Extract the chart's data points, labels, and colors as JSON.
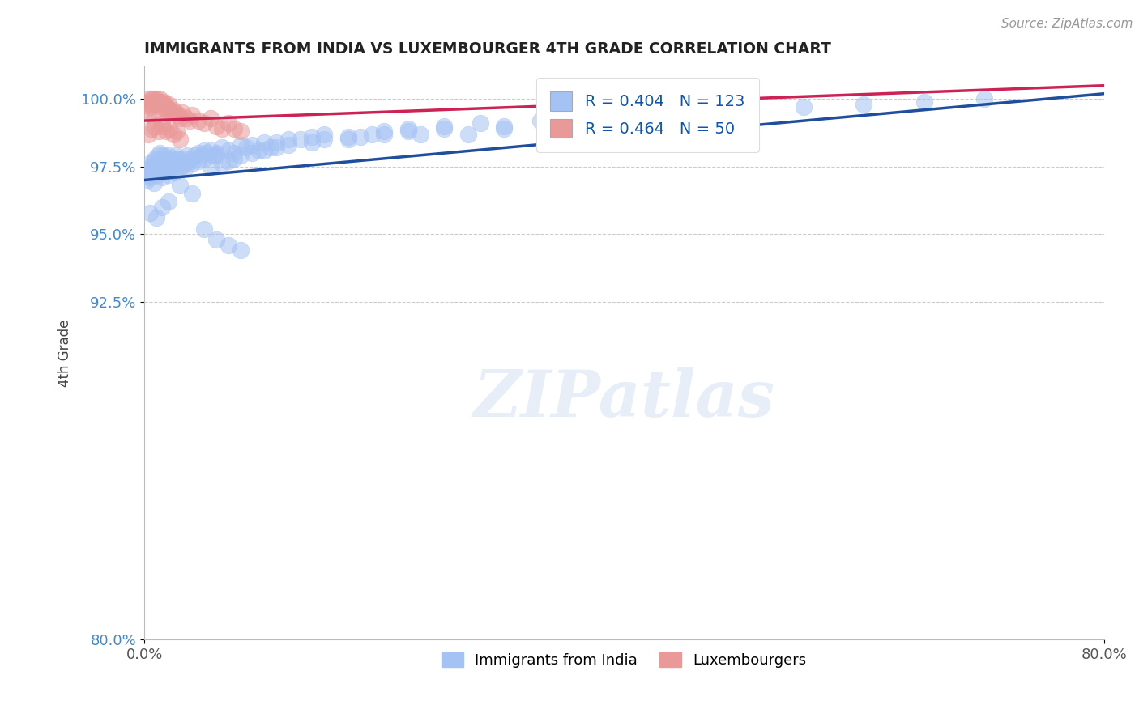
{
  "title": "IMMIGRANTS FROM INDIA VS LUXEMBOURGER 4TH GRADE CORRELATION CHART",
  "source": "Source: ZipAtlas.com",
  "ylabel": "4th Grade",
  "x_min": 0.0,
  "x_max": 80.0,
  "y_min": 80.0,
  "y_max": 101.2,
  "yticks": [
    80.0,
    92.5,
    95.0,
    97.5,
    100.0
  ],
  "xticks": [
    0.0,
    80.0
  ],
  "legend_label1": "Immigrants from India",
  "legend_label2": "Luxembourgers",
  "blue_color": "#a4c2f4",
  "pink_color": "#ea9999",
  "blue_line_color": "#1f4e9c",
  "pink_line_color": "#cc2255",
  "watermark_text": "ZIPatlas",
  "background_color": "#ffffff",
  "grid_color": "#cccccc",
  "blue_x": [
    0.3,
    0.4,
    0.5,
    0.6,
    0.7,
    0.8,
    0.9,
    1.0,
    1.1,
    1.2,
    1.3,
    1.4,
    1.5,
    1.6,
    1.7,
    1.8,
    1.9,
    2.0,
    2.1,
    2.2,
    2.3,
    2.4,
    2.5,
    2.6,
    2.7,
    2.8,
    2.9,
    3.0,
    3.2,
    3.4,
    3.6,
    3.8,
    4.0,
    4.2,
    4.5,
    4.8,
    5.0,
    5.2,
    5.5,
    5.8,
    6.0,
    6.5,
    7.0,
    7.5,
    8.0,
    8.5,
    9.0,
    9.5,
    10.0,
    10.5,
    11.0,
    12.0,
    13.0,
    14.0,
    15.0,
    17.0,
    18.0,
    19.0,
    20.0,
    22.0,
    23.0,
    25.0,
    28.0,
    30.0,
    33.0,
    35.0,
    38.0,
    40.0,
    43.0,
    45.0,
    48.0,
    50.0,
    55.0,
    60.0,
    65.0,
    70.0,
    0.2,
    0.5,
    0.8,
    1.0,
    1.3,
    1.5,
    1.8,
    2.0,
    2.3,
    2.5,
    2.8,
    3.0,
    3.5,
    4.0,
    4.5,
    5.0,
    5.5,
    6.0,
    6.5,
    7.0,
    7.5,
    8.0,
    9.0,
    10.0,
    11.0,
    12.0,
    14.0,
    15.0,
    17.0,
    20.0,
    22.0,
    25.0,
    27.0,
    30.0,
    5.0,
    6.0,
    7.0,
    8.0,
    3.0,
    4.0,
    2.0,
    1.5,
    0.5,
    1.0
  ],
  "blue_y": [
    97.2,
    97.4,
    97.6,
    97.5,
    97.3,
    97.7,
    97.8,
    97.5,
    97.6,
    97.9,
    98.0,
    97.8,
    97.7,
    97.9,
    97.6,
    97.8,
    97.5,
    97.9,
    97.7,
    97.6,
    97.8,
    97.5,
    97.7,
    97.9,
    97.6,
    97.8,
    97.7,
    97.5,
    97.8,
    97.6,
    97.9,
    97.7,
    97.8,
    97.9,
    98.0,
    97.9,
    98.1,
    98.0,
    98.1,
    97.9,
    98.0,
    98.2,
    98.1,
    98.0,
    98.3,
    98.2,
    98.3,
    98.1,
    98.4,
    98.2,
    98.4,
    98.5,
    98.5,
    98.6,
    98.7,
    98.5,
    98.6,
    98.7,
    98.8,
    98.9,
    98.7,
    99.0,
    99.1,
    99.0,
    99.2,
    99.1,
    99.3,
    99.2,
    99.3,
    99.4,
    99.5,
    99.5,
    99.7,
    99.8,
    99.9,
    100.0,
    97.0,
    97.1,
    96.9,
    97.2,
    97.3,
    97.1,
    97.4,
    97.2,
    97.5,
    97.3,
    97.6,
    97.4,
    97.5,
    97.6,
    97.7,
    97.8,
    97.5,
    97.9,
    97.6,
    97.7,
    97.8,
    97.9,
    98.0,
    98.1,
    98.2,
    98.3,
    98.4,
    98.5,
    98.6,
    98.7,
    98.8,
    98.9,
    98.7,
    98.9,
    95.2,
    94.8,
    94.6,
    94.4,
    96.8,
    96.5,
    96.2,
    96.0,
    95.8,
    95.6
  ],
  "pink_x": [
    0.2,
    0.3,
    0.4,
    0.5,
    0.6,
    0.7,
    0.8,
    0.9,
    1.0,
    1.1,
    1.2,
    1.3,
    1.4,
    1.5,
    1.6,
    1.7,
    1.8,
    1.9,
    2.0,
    2.1,
    2.2,
    2.4,
    2.6,
    2.8,
    3.0,
    3.2,
    3.5,
    3.8,
    4.0,
    4.5,
    5.0,
    5.5,
    6.0,
    6.5,
    7.0,
    7.5,
    8.0,
    0.3,
    0.6,
    0.9,
    1.2,
    1.5,
    1.8,
    2.1,
    2.4,
    2.7,
    3.0,
    0.4,
    0.8,
    1.5
  ],
  "pink_y": [
    99.8,
    99.9,
    100.0,
    99.7,
    100.0,
    99.8,
    100.0,
    99.9,
    100.0,
    99.8,
    99.9,
    100.0,
    99.8,
    99.7,
    99.9,
    99.8,
    99.6,
    99.7,
    99.8,
    99.6,
    99.5,
    99.6,
    99.5,
    99.4,
    99.3,
    99.5,
    99.3,
    99.2,
    99.4,
    99.2,
    99.1,
    99.3,
    99.0,
    98.9,
    99.1,
    98.9,
    98.8,
    98.7,
    98.9,
    99.0,
    98.8,
    99.0,
    98.8,
    98.9,
    98.7,
    98.8,
    98.5,
    99.5,
    99.3,
    99.1
  ],
  "blue_trend_x0": 0,
  "blue_trend_y0": 97.0,
  "blue_trend_x1": 80,
  "blue_trend_y1": 100.2,
  "pink_trend_x0": 0,
  "pink_trend_y0": 99.2,
  "pink_trend_x1": 80,
  "pink_trend_y1": 100.5
}
